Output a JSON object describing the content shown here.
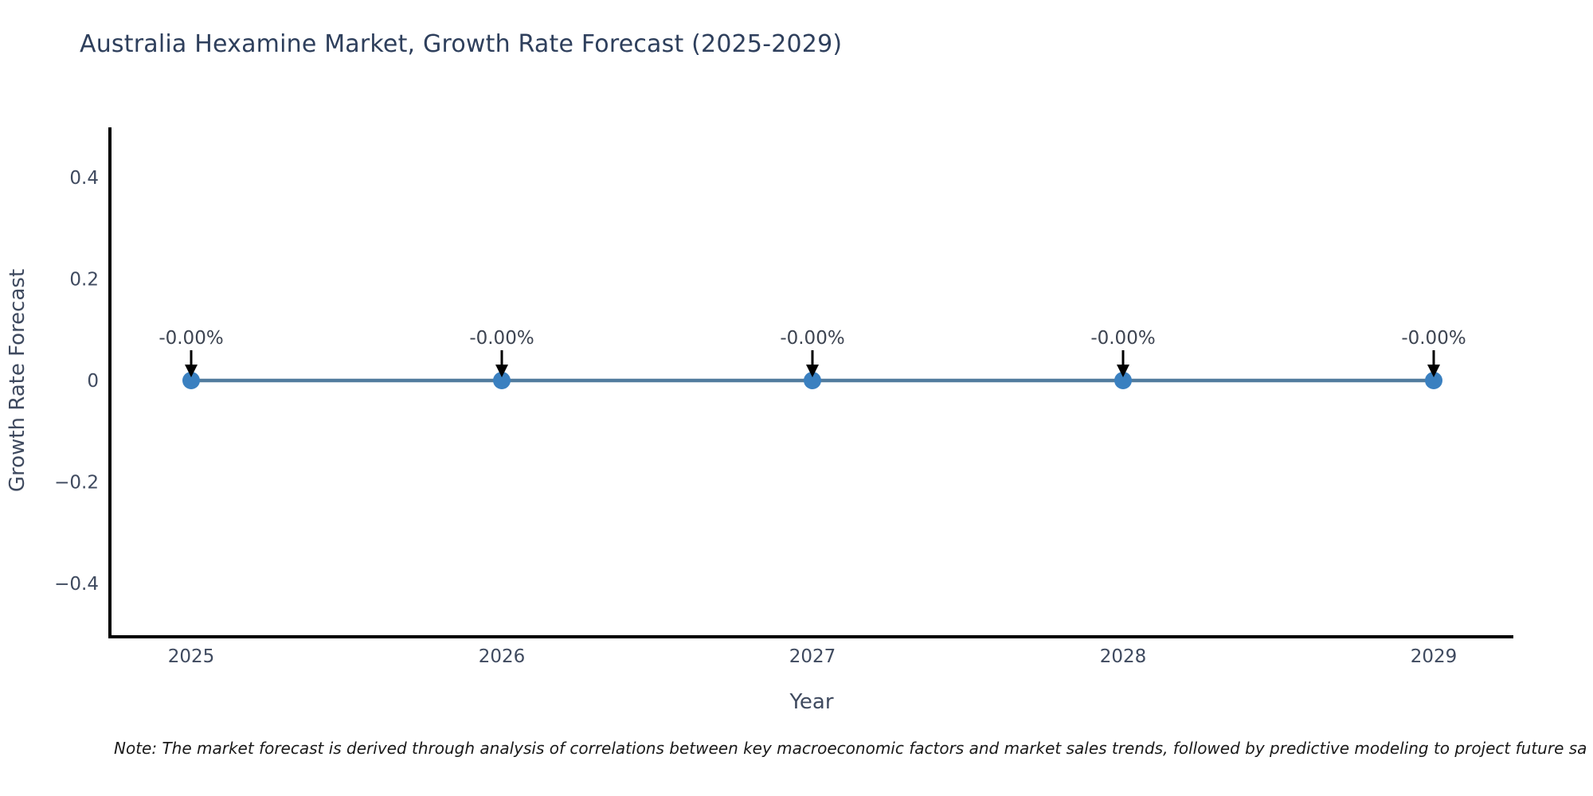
{
  "chart_data": {
    "type": "line",
    "title": "Australia Hexamine Market, Growth Rate Forecast (2025-2029)",
    "xlabel": "Year",
    "ylabel": "Growth Rate Forecast",
    "x": [
      2025,
      2026,
      2027,
      2028,
      2029
    ],
    "series": [
      {
        "name": "Growth Rate Forecast",
        "values": [
          0,
          0,
          0,
          0,
          0
        ]
      }
    ],
    "point_labels": [
      "-0.00%",
      "-0.00%",
      "-0.00%",
      "-0.00%",
      "-0.00%"
    ],
    "x_tick_labels": [
      "2025",
      "2026",
      "2027",
      "2028",
      "2029"
    ],
    "y_tick_labels": [
      "0.4",
      "0.2",
      "0",
      "−0.2",
      "−0.4"
    ],
    "y_tick_values": [
      0.4,
      0.2,
      0,
      -0.2,
      -0.4
    ],
    "ylim": [
      -0.5,
      0.5
    ],
    "grid": false,
    "legend": "none",
    "annotation_style": "down-arrow-to-point",
    "colors": {
      "line": "#527c9e",
      "marker": "#3a80c0",
      "arrow": "#000000",
      "axis": "#000000",
      "title_text": "#2e3f5c",
      "tick_text": "#3f4a5f",
      "label_text": "#3d4451",
      "note_text": "#1a1a1a",
      "background": "#ffffff"
    }
  },
  "note": {
    "text": "Note: The market forecast is derived through analysis of correlations between key macroeconomic factors and market sales trends, followed by predictive modeling to project future sa"
  }
}
